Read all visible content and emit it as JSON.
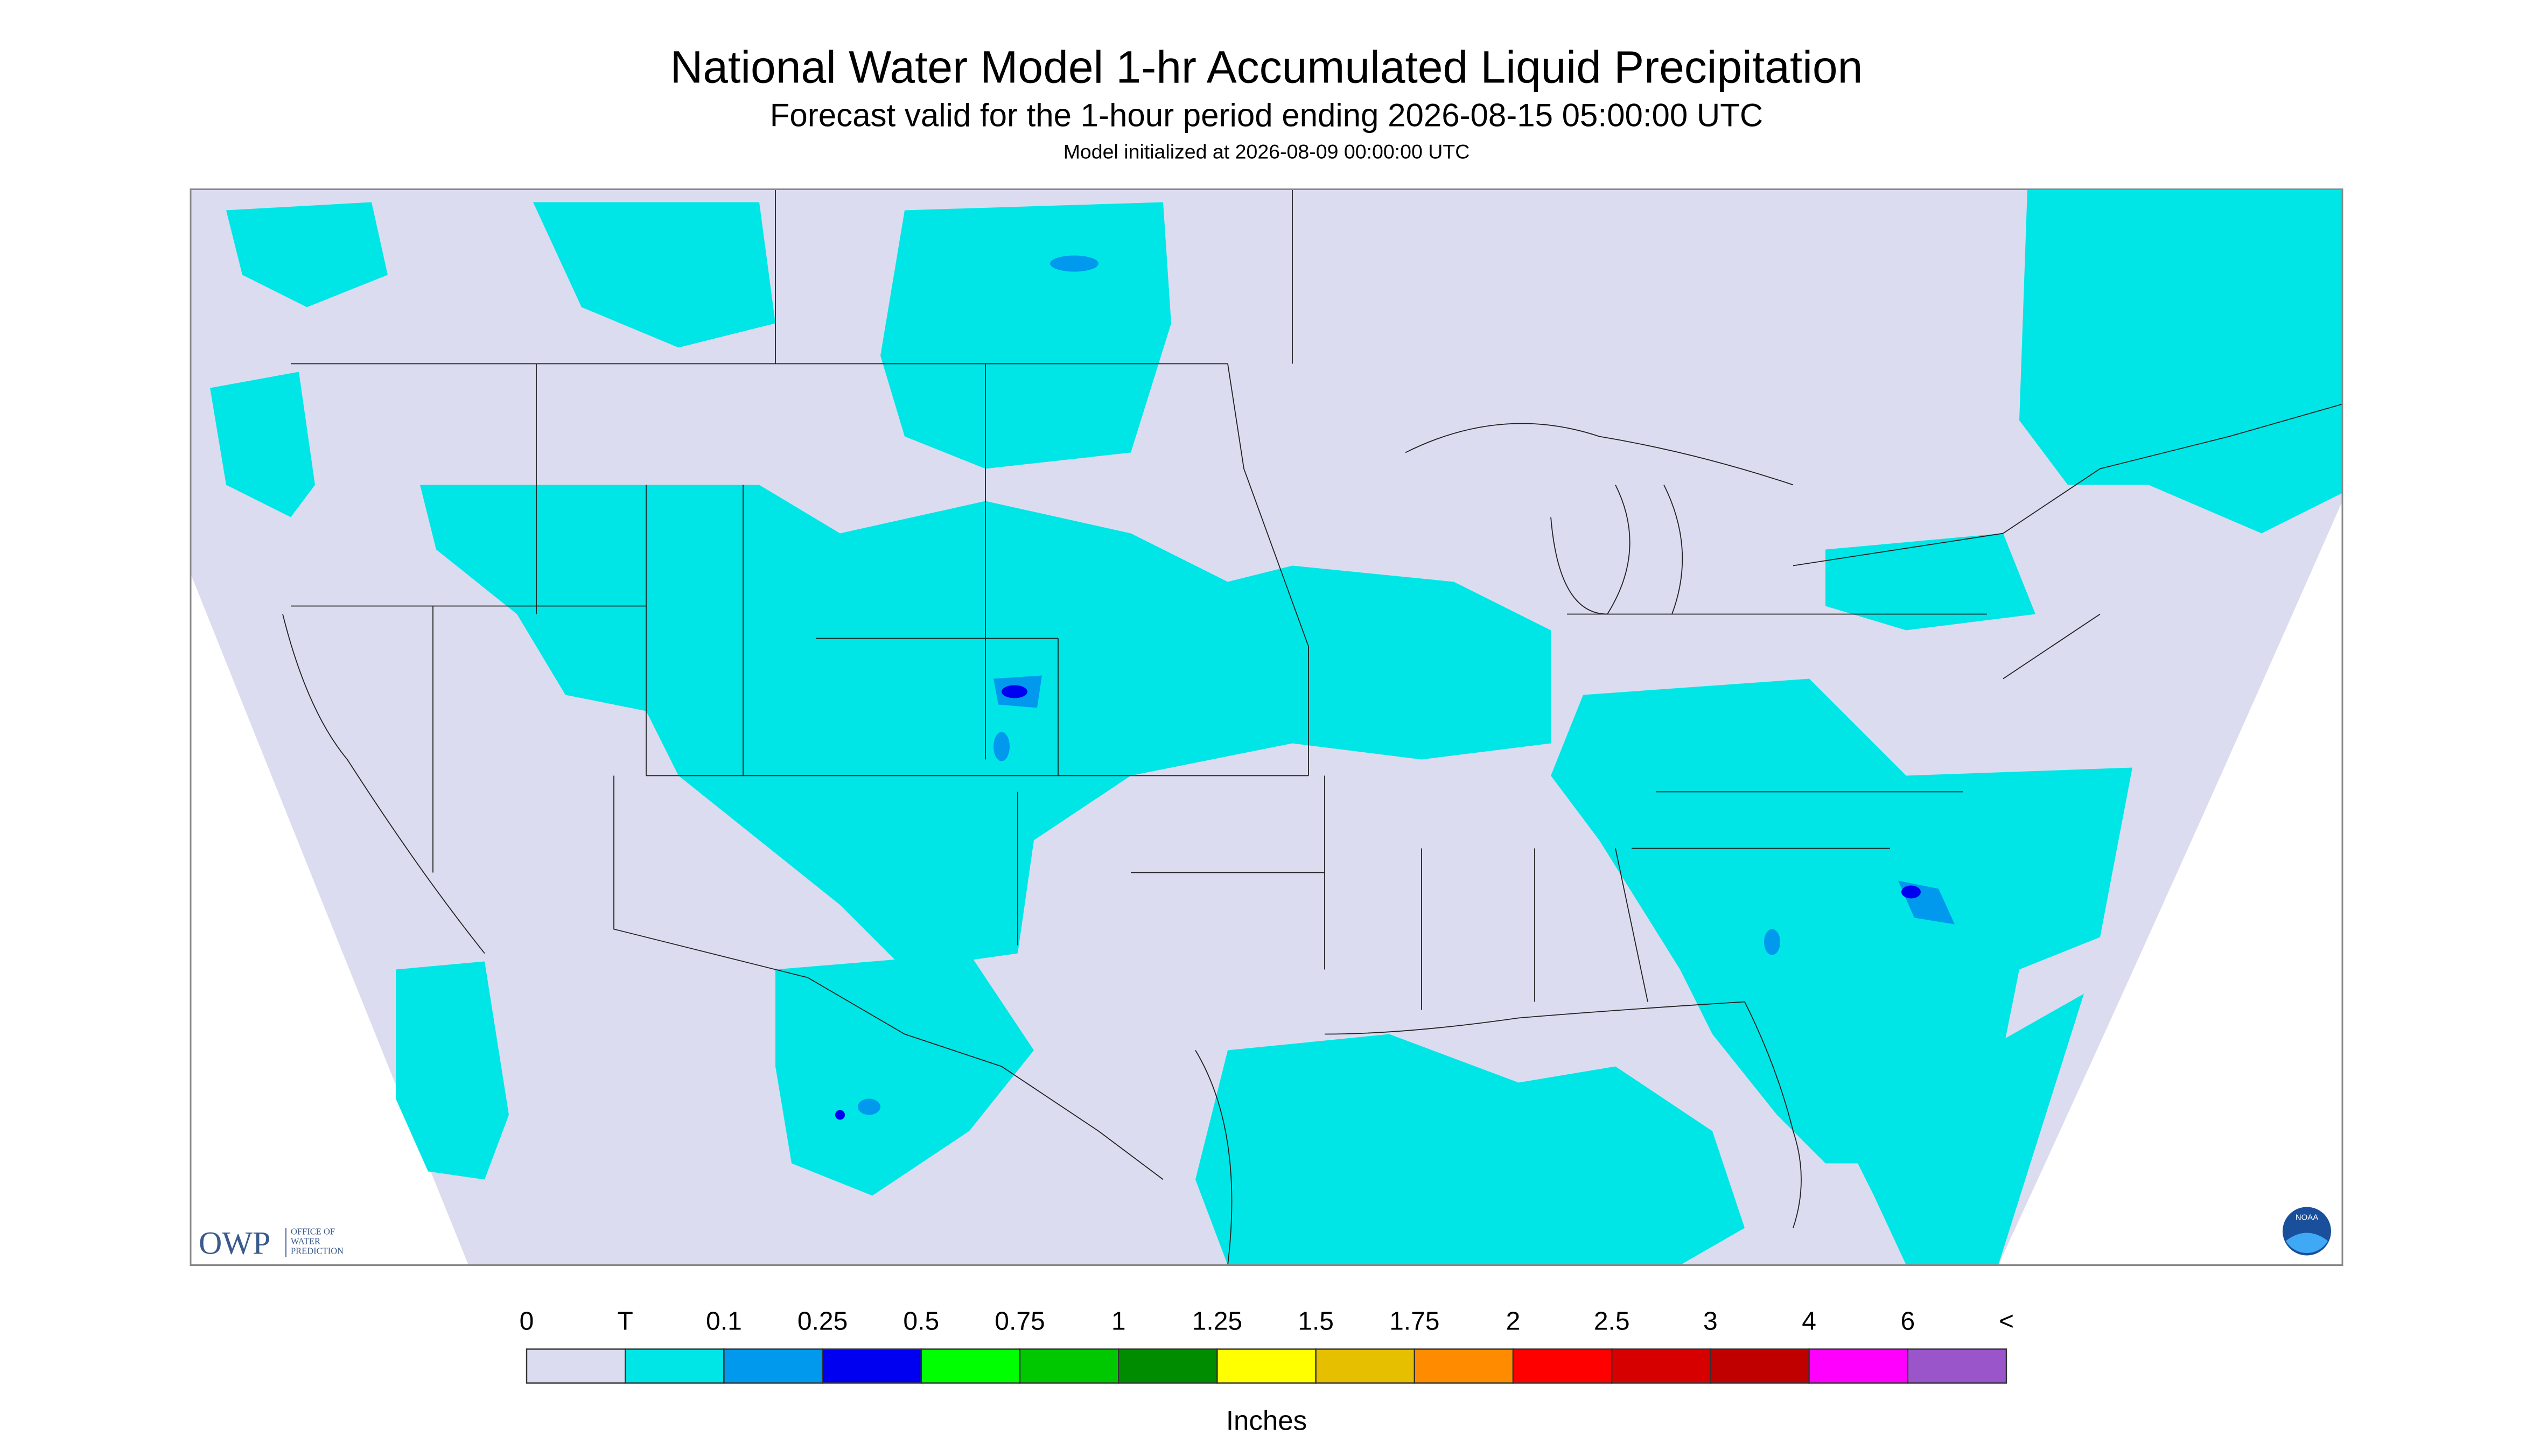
{
  "header": {
    "title": "National Water Model 1-hr Accumulated Liquid Precipitation",
    "subtitle": "Forecast valid for the 1-hour period ending 2026-08-15 05:00:00 UTC",
    "init": "Model initialized at 2026-08-09 00:00:00 UTC"
  },
  "logos": {
    "owp": "OWP",
    "owp_line1": "OFFICE OF",
    "owp_line2": "WATER",
    "owp_line3": "PREDICTION",
    "noaa": "NOAA"
  },
  "legend": {
    "labels": [
      "0",
      "T",
      "0.1",
      "0.25",
      "0.5",
      "0.75",
      "1",
      "1.25",
      "1.5",
      "1.75",
      "2",
      "2.5",
      "3",
      "4",
      "6",
      "<"
    ],
    "colors": [
      "#dcdcf0",
      "#00e6e6",
      "#0099ee",
      "#0000f0",
      "#00ff00",
      "#00c800",
      "#008c00",
      "#ffff00",
      "#e6c000",
      "#ff8c00",
      "#ff0000",
      "#d70000",
      "#c00000",
      "#ff00ff",
      "#9955c9"
    ],
    "unit": "Inches"
  }
}
